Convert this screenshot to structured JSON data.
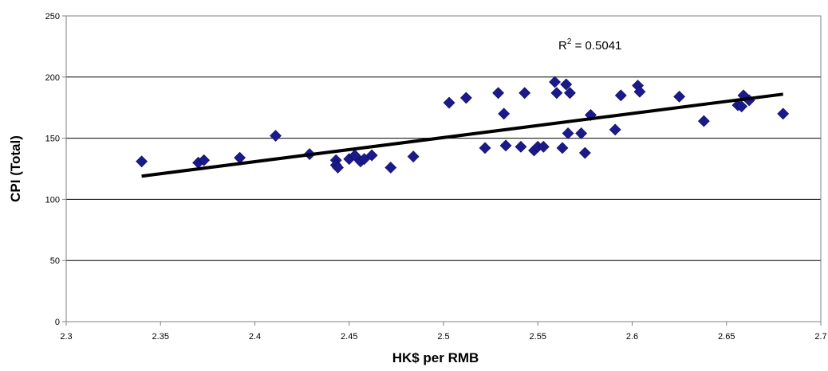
{
  "chart_data": {
    "type": "scatter",
    "xlabel": "HK$ per RMB",
    "ylabel": "CPI (Total)",
    "xlim": [
      2.3,
      2.7
    ],
    "ylim": [
      0,
      250
    ],
    "x_ticks": [
      "2.3",
      "2.35",
      "2.4",
      "2.45",
      "2.5",
      "2.55",
      "2.6",
      "2.65",
      "2.7"
    ],
    "y_ticks": [
      "0",
      "50",
      "100",
      "150",
      "200",
      "250"
    ],
    "grid": "horizontal",
    "legend": "none",
    "marker": "diamond",
    "marker_color": "#1a1a8c",
    "trendline_color": "#000000",
    "trendline": {
      "type": "linear",
      "x": [
        2.34,
        2.68
      ],
      "y": [
        119,
        186
      ],
      "r2_label": "0.5041"
    },
    "annotation": {
      "prefix": "R",
      "superscript": "2",
      "suffix": " = 0.5041"
    },
    "series": [
      {
        "points": [
          [
            2.34,
            131
          ],
          [
            2.37,
            130
          ],
          [
            2.373,
            132
          ],
          [
            2.392,
            134
          ],
          [
            2.411,
            152
          ],
          [
            2.429,
            137
          ],
          [
            2.443,
            132
          ],
          [
            2.443,
            128
          ],
          [
            2.444,
            126
          ],
          [
            2.45,
            133
          ],
          [
            2.453,
            136
          ],
          [
            2.456,
            131
          ],
          [
            2.458,
            133
          ],
          [
            2.462,
            136
          ],
          [
            2.472,
            126
          ],
          [
            2.484,
            135
          ],
          [
            2.503,
            179
          ],
          [
            2.512,
            183
          ],
          [
            2.522,
            142
          ],
          [
            2.529,
            187
          ],
          [
            2.532,
            170
          ],
          [
            2.533,
            144
          ],
          [
            2.541,
            143
          ],
          [
            2.543,
            187
          ],
          [
            2.548,
            140
          ],
          [
            2.55,
            143
          ],
          [
            2.553,
            143
          ],
          [
            2.559,
            196
          ],
          [
            2.56,
            187
          ],
          [
            2.563,
            142
          ],
          [
            2.565,
            194
          ],
          [
            2.566,
            154
          ],
          [
            2.567,
            187
          ],
          [
            2.573,
            154
          ],
          [
            2.575,
            138
          ],
          [
            2.578,
            169
          ],
          [
            2.591,
            157
          ],
          [
            2.594,
            185
          ],
          [
            2.603,
            193
          ],
          [
            2.604,
            188
          ],
          [
            2.625,
            184
          ],
          [
            2.638,
            164
          ],
          [
            2.656,
            177
          ],
          [
            2.658,
            176
          ],
          [
            2.659,
            185
          ],
          [
            2.662,
            181
          ],
          [
            2.68,
            170
          ]
        ]
      }
    ]
  }
}
